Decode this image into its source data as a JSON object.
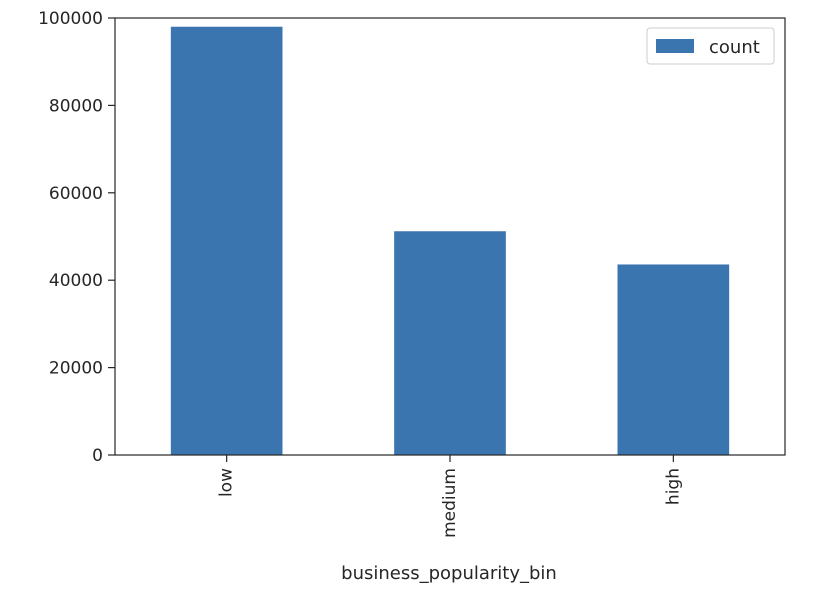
{
  "chart_data": {
    "type": "bar",
    "categories": [
      "low",
      "medium",
      "high"
    ],
    "series": [
      {
        "name": "count",
        "values": [
          98000,
          51200,
          43600
        ],
        "color": "#3b75af"
      }
    ],
    "title": "",
    "xlabel": "business_popularity_bin",
    "ylabel": "",
    "ylim": [
      0,
      100000
    ],
    "yticks": [
      0,
      20000,
      40000,
      60000,
      80000,
      100000
    ],
    "ytick_labels": [
      "0",
      "20000",
      "40000",
      "60000",
      "80000",
      "100000"
    ],
    "xtick_rotation": "vertical",
    "grid": false,
    "legend": {
      "position": "top-right",
      "entries": [
        "count"
      ]
    }
  }
}
